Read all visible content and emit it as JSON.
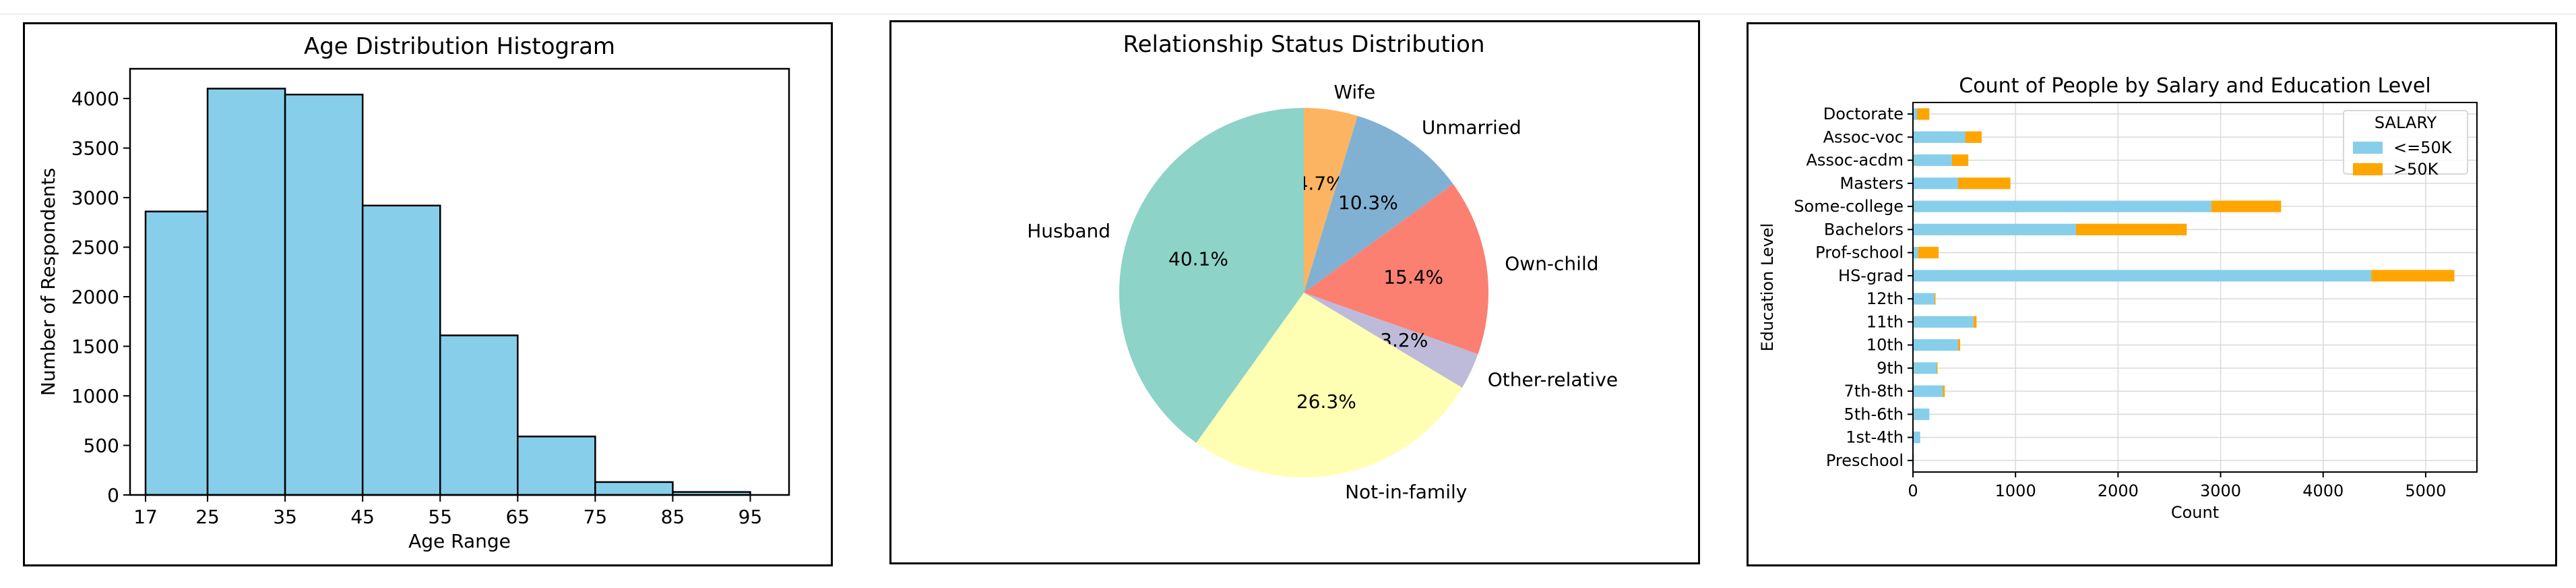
{
  "charts": {
    "histogram": {
      "chart_data": {
        "type": "bar",
        "title": "Age Distribution Histogram",
        "xlabel": "Age Range",
        "ylabel": "Number of Respondents",
        "bin_edges": [
          17,
          25,
          35,
          45,
          55,
          65,
          75,
          85,
          95
        ],
        "values": [
          2860,
          4100,
          4040,
          2920,
          1610,
          590,
          130,
          30
        ],
        "xlim": [
          15,
          100
        ],
        "ylim": [
          0,
          4300
        ],
        "y_ticks": [
          0,
          500,
          1000,
          1500,
          2000,
          2500,
          3000,
          3500,
          4000
        ],
        "bar_color": "#87ceeb",
        "edge_color": "#000000"
      }
    },
    "pie": {
      "chart_data": {
        "type": "pie",
        "title": "Relationship Status Distribution",
        "slices": [
          {
            "label": "Wife",
            "value": 4.7,
            "pct_label": "4.7%",
            "color": "#fdb462"
          },
          {
            "label": "Unmarried",
            "value": 10.3,
            "pct_label": "10.3%",
            "color": "#80b1d3"
          },
          {
            "label": "Own-child",
            "value": 15.4,
            "pct_label": "15.4%",
            "color": "#fb8072"
          },
          {
            "label": "Other-relative",
            "value": 3.2,
            "pct_label": "3.2%",
            "color": "#bebada"
          },
          {
            "label": "Not-in-family",
            "value": 26.3,
            "pct_label": "26.3%",
            "color": "#ffffb3"
          },
          {
            "label": "Husband",
            "value": 40.1,
            "pct_label": "40.1%",
            "color": "#8dd3c7"
          }
        ]
      }
    },
    "stacked_bar": {
      "chart_data": {
        "type": "bar",
        "orientation": "horizontal",
        "stacked": true,
        "title": "Count of People by Salary and Education Level",
        "xlabel": "Count",
        "ylabel": "Education Level",
        "categories": [
          "Doctorate",
          "Assoc-voc",
          "Assoc-acdm",
          "Masters",
          "Some-college",
          "Bachelors",
          "Prof-school",
          "HS-grad",
          "12th",
          "11th",
          "10th",
          "9th",
          "7th-8th",
          "5th-6th",
          "1st-4th",
          "Preschool"
        ],
        "series": [
          {
            "name": "<=50K",
            "color": "#87ceeb",
            "values": [
              40,
              510,
              380,
              440,
              2910,
              1590,
              50,
              4470,
              210,
              590,
              440,
              230,
              290,
              160,
              70,
              10
            ]
          },
          {
            "name": ">50K",
            "color": "#ffa500",
            "values": [
              120,
              160,
              160,
              510,
              680,
              1080,
              200,
              810,
              10,
              30,
              20,
              10,
              20,
              0,
              0,
              0
            ]
          }
        ],
        "xlim": [
          0,
          5500
        ],
        "x_ticks": [
          0,
          1000,
          2000,
          3000,
          4000,
          5000
        ],
        "legend_title": "SALARY",
        "legend_position": "upper right",
        "grid": true
      }
    }
  }
}
